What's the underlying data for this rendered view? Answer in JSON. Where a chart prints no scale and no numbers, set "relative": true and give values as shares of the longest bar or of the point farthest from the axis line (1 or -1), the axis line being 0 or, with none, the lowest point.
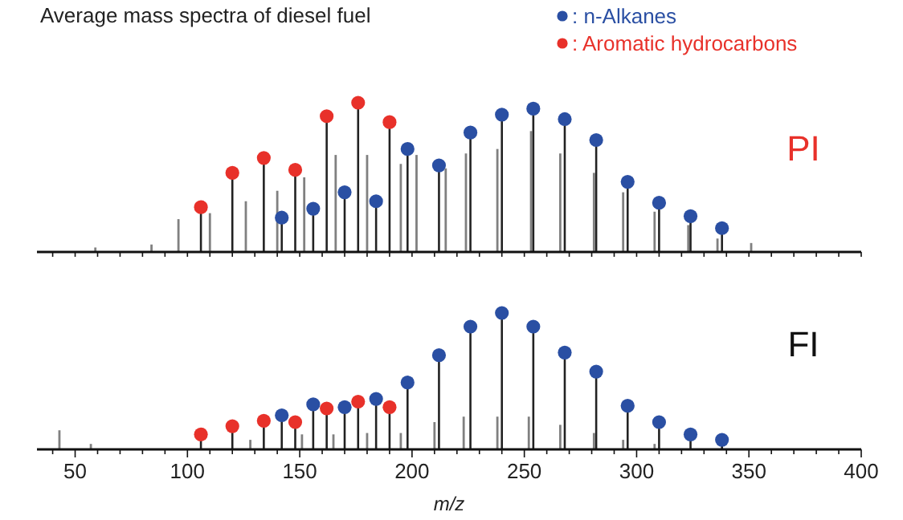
{
  "chart_data": [
    {
      "type": "bar",
      "relative": true,
      "title": "Average mass spectra of diesel fuel",
      "annotations": [
        "PI"
      ],
      "xlim": [
        33,
        400
      ],
      "xticks": [
        {
          "value": 40,
          "label": null
        },
        {
          "value": 50,
          "label": null
        },
        {
          "value": 60,
          "label": null
        },
        {
          "value": 70,
          "label": null
        },
        {
          "value": 80,
          "label": null
        },
        {
          "value": 90,
          "label": null
        },
        {
          "value": 100,
          "label": null
        },
        {
          "value": 110,
          "label": null
        },
        {
          "value": 120,
          "label": null
        },
        {
          "value": 130,
          "label": null
        },
        {
          "value": 140,
          "label": null
        },
        {
          "value": 150,
          "label": null
        },
        {
          "value": 160,
          "label": null
        },
        {
          "value": 170,
          "label": null
        },
        {
          "value": 180,
          "label": null
        },
        {
          "value": 190,
          "label": null
        },
        {
          "value": 200,
          "label": null
        },
        {
          "value": 210,
          "label": null
        },
        {
          "value": 220,
          "label": null
        },
        {
          "value": 230,
          "label": null
        },
        {
          "value": 240,
          "label": null
        },
        {
          "value": 250,
          "label": null
        },
        {
          "value": 260,
          "label": null
        },
        {
          "value": 270,
          "label": null
        },
        {
          "value": 280,
          "label": null
        },
        {
          "value": 290,
          "label": null
        },
        {
          "value": 300,
          "label": null
        },
        {
          "value": 310,
          "label": null
        },
        {
          "value": 320,
          "label": null
        },
        {
          "value": 330,
          "label": null
        },
        {
          "value": 340,
          "label": null
        },
        {
          "value": 350,
          "label": null
        },
        {
          "value": 360,
          "label": null
        },
        {
          "value": 370,
          "label": null
        },
        {
          "value": 380,
          "label": null
        },
        {
          "value": 390,
          "label": null
        },
        {
          "value": 400,
          "label": null
        }
      ],
      "tick_labels": false,
      "legend": "top right",
      "series": [
        {
          "color": "#808080",
          "x": [
            59,
            84,
            96,
            110,
            126,
            140,
            152,
            166,
            180,
            195,
            202,
            215,
            224,
            238,
            253,
            266,
            281,
            294,
            308,
            323,
            336,
            351
          ],
          "values": [
            0.03,
            0.05,
            0.22,
            0.26,
            0.34,
            0.41,
            0.5,
            0.65,
            0.65,
            0.59,
            0.65,
            0.56,
            0.66,
            0.69,
            0.81,
            0.66,
            0.53,
            0.4,
            0.27,
            0.18,
            0.09,
            0.06
          ]
        },
        {
          "name": ": n-Alkanes",
          "type": "lollipop",
          "color": "#2a4fa3",
          "x": [
            142,
            156,
            170,
            184,
            198,
            212,
            226,
            240,
            254,
            268,
            282,
            296,
            310,
            324,
            338
          ],
          "values": [
            0.23,
            0.29,
            0.4,
            0.34,
            0.69,
            0.58,
            0.8,
            0.92,
            0.96,
            0.89,
            0.75,
            0.47,
            0.33,
            0.24,
            0.16
          ]
        },
        {
          "name": ": Aromatic hydrocarbons",
          "type": "lollipop",
          "color": "#e8312a",
          "x": [
            106,
            120,
            134,
            148,
            162,
            176,
            190
          ],
          "values": [
            0.3,
            0.53,
            0.63,
            0.55,
            0.91,
            1.0,
            0.87
          ]
        }
      ]
    },
    {
      "type": "bar",
      "relative": true,
      "annotations": [
        "FI"
      ],
      "xlabel": "m/z",
      "xlim": [
        33,
        400
      ],
      "xticks": [
        {
          "value": 40,
          "label": null
        },
        {
          "value": 50,
          "label": "50"
        },
        {
          "value": 60,
          "label": null
        },
        {
          "value": 70,
          "label": null
        },
        {
          "value": 80,
          "label": null
        },
        {
          "value": 90,
          "label": null
        },
        {
          "value": 100,
          "label": "100"
        },
        {
          "value": 110,
          "label": null
        },
        {
          "value": 120,
          "label": null
        },
        {
          "value": 130,
          "label": null
        },
        {
          "value": 140,
          "label": null
        },
        {
          "value": 150,
          "label": "150"
        },
        {
          "value": 160,
          "label": null
        },
        {
          "value": 170,
          "label": null
        },
        {
          "value": 180,
          "label": null
        },
        {
          "value": 190,
          "label": null
        },
        {
          "value": 200,
          "label": "200"
        },
        {
          "value": 210,
          "label": null
        },
        {
          "value": 220,
          "label": null
        },
        {
          "value": 230,
          "label": null
        },
        {
          "value": 240,
          "label": null
        },
        {
          "value": 250,
          "label": "250"
        },
        {
          "value": 260,
          "label": null
        },
        {
          "value": 270,
          "label": null
        },
        {
          "value": 280,
          "label": null
        },
        {
          "value": 290,
          "label": null
        },
        {
          "value": 300,
          "label": "300"
        },
        {
          "value": 310,
          "label": null
        },
        {
          "value": 320,
          "label": null
        },
        {
          "value": 330,
          "label": null
        },
        {
          "value": 340,
          "label": null
        },
        {
          "value": 350,
          "label": "350"
        },
        {
          "value": 360,
          "label": null
        },
        {
          "value": 370,
          "label": null
        },
        {
          "value": 380,
          "label": null
        },
        {
          "value": 390,
          "label": null
        },
        {
          "value": 400,
          "label": "400"
        }
      ],
      "tick_labels": "x",
      "series": [
        {
          "color": "#808080",
          "x": [
            43,
            57,
            128,
            151,
            165,
            180,
            195,
            210,
            223,
            238,
            252,
            266,
            281,
            294,
            308
          ],
          "values": [
            0.14,
            0.04,
            0.07,
            0.11,
            0.11,
            0.12,
            0.12,
            0.2,
            0.24,
            0.24,
            0.24,
            0.18,
            0.12,
            0.07,
            0.04
          ]
        },
        {
          "type": "lollipop",
          "color": "#2a4fa3",
          "x": [
            142,
            156,
            170,
            184,
            198,
            212,
            226,
            240,
            254,
            268,
            282,
            296,
            310,
            324,
            338
          ],
          "values": [
            0.25,
            0.33,
            0.31,
            0.37,
            0.49,
            0.69,
            0.9,
            1.0,
            0.9,
            0.71,
            0.57,
            0.32,
            0.2,
            0.11,
            0.07
          ]
        },
        {
          "type": "lollipop",
          "color": "#e8312a",
          "x": [
            106,
            120,
            134,
            148,
            162,
            176,
            190
          ],
          "values": [
            0.11,
            0.17,
            0.21,
            0.2,
            0.3,
            0.35,
            0.31
          ]
        }
      ]
    }
  ]
}
